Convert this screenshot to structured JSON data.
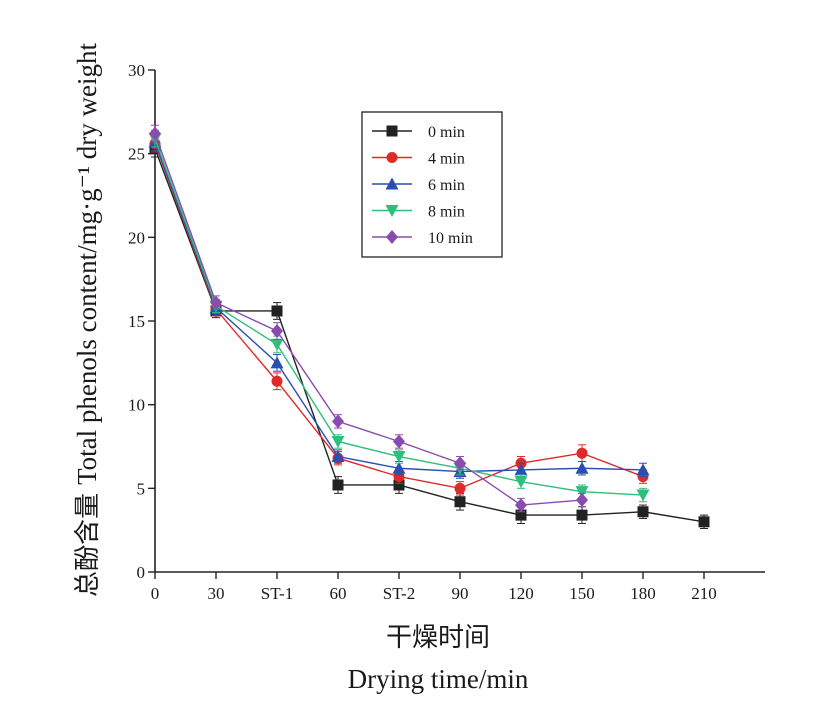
{
  "chart_data": {
    "type": "line",
    "categories": [
      "0",
      "30",
      "ST-1",
      "60",
      "ST-2",
      "90",
      "120",
      "150",
      "180",
      "210"
    ],
    "xlabel_cn": "干燥时间",
    "xlabel": "Drying time/min",
    "ylabel_cn": "总酚含量",
    "ylabel": "Total phenols content/mg·g⁻¹ dry weight",
    "ylim": [
      0,
      30
    ],
    "yticks": [
      0,
      5,
      10,
      15,
      20,
      25,
      30
    ],
    "grid": false,
    "legend_position": "top-center",
    "error_bars": true,
    "series": [
      {
        "name": "0 min",
        "color": "#222222",
        "marker": "square",
        "values": [
          25.3,
          15.6,
          15.6,
          5.2,
          5.2,
          4.2,
          3.4,
          3.4,
          3.6,
          3.0
        ],
        "errors": [
          0.5,
          0.4,
          0.5,
          0.5,
          0.5,
          0.5,
          0.5,
          0.5,
          0.4,
          0.4
        ]
      },
      {
        "name": "4 min",
        "color": "#e02a2a",
        "marker": "circle",
        "values": [
          25.6,
          15.7,
          11.4,
          6.8,
          5.7,
          5.0,
          6.5,
          7.1,
          5.7,
          null
        ],
        "errors": [
          0.5,
          0.4,
          0.5,
          0.4,
          0.4,
          0.4,
          0.4,
          0.5,
          0.4,
          null
        ]
      },
      {
        "name": "6 min",
        "color": "#2a4fb0",
        "marker": "triangle-up",
        "values": [
          25.7,
          15.8,
          12.5,
          6.9,
          6.2,
          6.0,
          6.1,
          6.2,
          6.1,
          null
        ],
        "errors": [
          0.5,
          0.4,
          0.5,
          0.4,
          0.4,
          0.4,
          0.4,
          0.4,
          0.4,
          null
        ]
      },
      {
        "name": "8 min",
        "color": "#2fbf7a",
        "marker": "triangle-down",
        "values": [
          25.9,
          15.9,
          13.6,
          7.8,
          6.9,
          6.2,
          5.4,
          4.8,
          4.6,
          null
        ],
        "errors": [
          0.5,
          0.4,
          0.5,
          0.4,
          0.4,
          0.4,
          0.4,
          0.4,
          0.4,
          null
        ]
      },
      {
        "name": "10 min",
        "color": "#8a4bb0",
        "marker": "diamond",
        "values": [
          26.2,
          16.1,
          14.4,
          9.0,
          7.8,
          6.5,
          4.0,
          4.3,
          null,
          null
        ],
        "errors": [
          0.5,
          0.4,
          0.5,
          0.4,
          0.4,
          0.4,
          0.4,
          0.4,
          null,
          null
        ]
      }
    ]
  }
}
